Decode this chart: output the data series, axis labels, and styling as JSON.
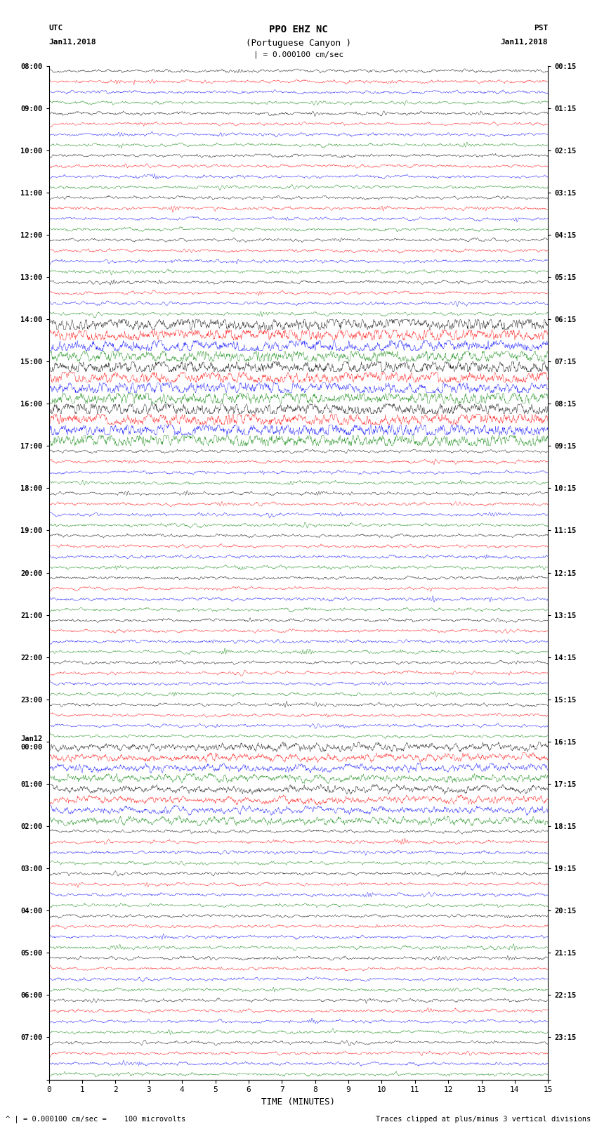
{
  "title_line1": "PPO EHZ NC",
  "title_line2": "(Portuguese Canyon )",
  "title_line3": "| = 0.000100 cm/sec",
  "left_label_line1": "UTC",
  "left_label_line2": "Jan11,2018",
  "right_label_line1": "PST",
  "right_label_line2": "Jan11,2018",
  "xlabel": "TIME (MINUTES)",
  "footer_left": "^ | = 0.000100 cm/sec =    100 microvolts",
  "footer_right": "Traces clipped at plus/minus 3 vertical divisions",
  "utc_hour_labels": [
    "08:00",
    "09:00",
    "10:00",
    "11:00",
    "12:00",
    "13:00",
    "14:00",
    "15:00",
    "16:00",
    "17:00",
    "18:00",
    "19:00",
    "20:00",
    "21:00",
    "22:00",
    "23:00",
    "Jan12\n00:00",
    "01:00",
    "02:00",
    "03:00",
    "04:00",
    "05:00",
    "06:00",
    "07:00"
  ],
  "pst_hour_labels": [
    "00:15",
    "01:15",
    "02:15",
    "03:15",
    "04:15",
    "05:15",
    "06:15",
    "07:15",
    "08:15",
    "09:15",
    "10:15",
    "11:15",
    "12:15",
    "13:15",
    "14:15",
    "15:15",
    "16:15",
    "17:15",
    "18:15",
    "19:15",
    "20:15",
    "21:15",
    "22:15",
    "23:15"
  ],
  "colors": [
    "black",
    "red",
    "blue",
    "green"
  ],
  "n_rows": 96,
  "n_minutes": 15,
  "bg_color": "white",
  "trace_amplitude": 0.35,
  "noise_amplitude": 0.07
}
